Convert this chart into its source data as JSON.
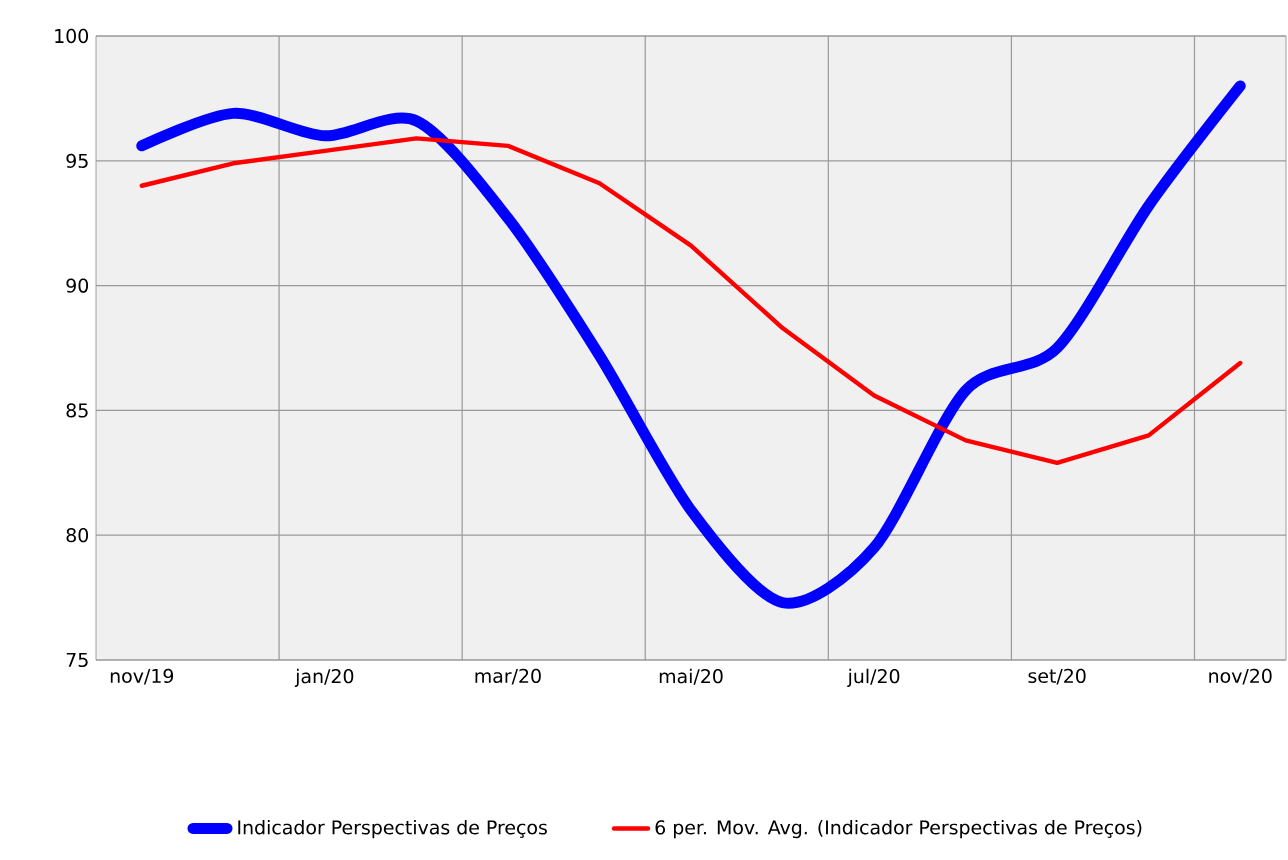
{
  "chart_data": {
    "type": "line",
    "categories": [
      "nov/19",
      null,
      "jan/20",
      null,
      "mar/20",
      null,
      "mai/20",
      null,
      "jul/20",
      null,
      "set/20",
      null,
      "nov/20"
    ],
    "series": [
      {
        "name": "Indicador Perspectivas de Preços",
        "color": "#0000ff",
        "values": [
          95.6,
          96.9,
          96.0,
          96.6,
          92.7,
          87.2,
          81.0,
          77.3,
          79.5,
          85.8,
          87.5,
          93.2,
          98.0
        ]
      },
      {
        "name": "6 per. Mov. Avg. (Indicador Perspectivas de Preços)",
        "color": "#ff0000",
        "values": [
          94.0,
          94.9,
          95.4,
          95.9,
          95.6,
          94.1,
          91.6,
          88.3,
          85.6,
          83.8,
          82.9,
          84.0,
          86.9
        ]
      }
    ],
    "ylim": [
      75,
      100
    ],
    "yticks": [
      75,
      80,
      85,
      90,
      95,
      100
    ],
    "grid": true,
    "legend": "bottom",
    "marker": "none"
  }
}
